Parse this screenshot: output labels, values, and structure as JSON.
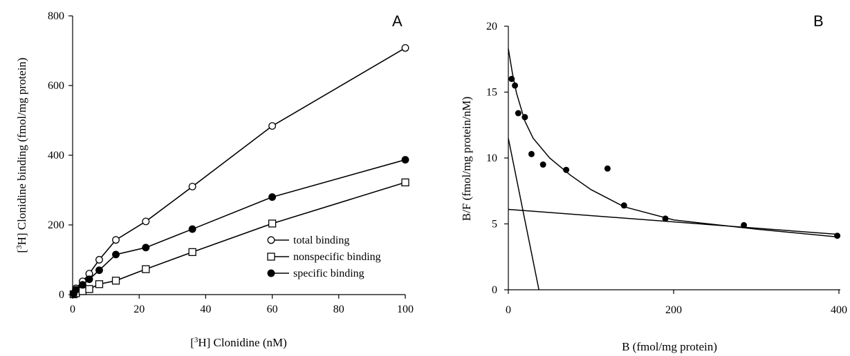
{
  "chart_data": [
    {
      "type": "line",
      "panel_label": "A",
      "ylabel_prefix": "[",
      "ylabel_sup": "3",
      "ylabel_rest": "H] Clonidine binding  (fmol/mg protein)",
      "xlabel_prefix": "[",
      "xlabel_sup": "3",
      "xlabel_rest": "H] Clonidine  (nM)",
      "xlim": [
        0,
        100
      ],
      "ylim": [
        0,
        800
      ],
      "xticks": [
        0,
        20,
        40,
        60,
        80,
        100
      ],
      "yticks": [
        0,
        200,
        400,
        600,
        800
      ],
      "grid": false,
      "legend_position": "bottom-right",
      "series": [
        {
          "name": "total binding",
          "marker": "open-circle",
          "x": [
            0.3,
            1,
            3,
            5,
            8,
            13,
            22,
            36,
            60,
            100
          ],
          "y": [
            3,
            18,
            38,
            60,
            100,
            157,
            210,
            310,
            484,
            708
          ]
        },
        {
          "name": "nonspecific binding",
          "marker": "open-square",
          "x": [
            0.3,
            1,
            3,
            5,
            8,
            13,
            22,
            36,
            60,
            100
          ],
          "y": [
            1,
            4,
            10,
            16,
            30,
            40,
            73,
            122,
            204,
            322
          ]
        },
        {
          "name": "specific binding",
          "marker": "filled-circle",
          "x": [
            0.3,
            1,
            3,
            5,
            8,
            13,
            22,
            36,
            60,
            100
          ],
          "y": [
            2,
            14,
            28,
            44,
            70,
            115,
            135,
            188,
            280,
            387
          ]
        }
      ]
    },
    {
      "type": "scatter",
      "panel_label": "B",
      "ylabel": "B/F  (fmol/mg protein/nM)",
      "xlabel": "B  (fmol/mg protein)",
      "xlim": [
        0,
        400
      ],
      "ylim": [
        0,
        20
      ],
      "xticks": [
        0,
        200,
        400
      ],
      "yticks": [
        0,
        5,
        10,
        15,
        20
      ],
      "grid": false,
      "points": {
        "x": [
          4,
          8,
          12,
          20,
          28,
          42,
          70,
          120,
          140,
          190,
          285,
          398
        ],
        "y": [
          16,
          15.5,
          13.4,
          13.1,
          10.3,
          9.5,
          9.1,
          9.2,
          6.4,
          5.4,
          4.9,
          4.1
        ]
      },
      "fit_curve": {
        "x": [
          0,
          5,
          10,
          20,
          30,
          50,
          75,
          100,
          140,
          200,
          300,
          400
        ],
        "y": [
          18.3,
          16.4,
          14.9,
          12.8,
          11.5,
          10.0,
          8.7,
          7.6,
          6.3,
          5.3,
          4.6,
          4.0
        ]
      },
      "high_affinity_line": {
        "x": [
          0,
          37
        ],
        "y": [
          11.5,
          0
        ]
      },
      "low_affinity_line": {
        "x": [
          0,
          400
        ],
        "y": [
          6.1,
          4.2
        ]
      }
    }
  ]
}
